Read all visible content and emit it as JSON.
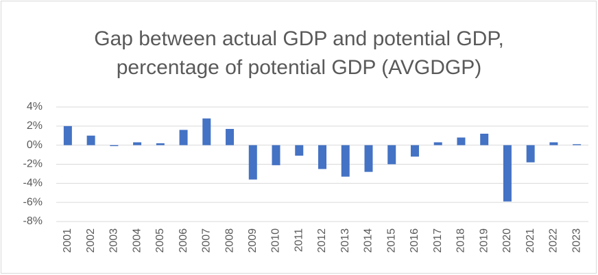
{
  "chart_data": {
    "type": "bar",
    "title": "Gap between actual GDP and potential GDP, percentage of potential GDP (AVGDGP)",
    "categories": [
      "2001",
      "2002",
      "2003",
      "2004",
      "2005",
      "2006",
      "2007",
      "2008",
      "2009",
      "2010",
      "2011",
      "2012",
      "2013",
      "2014",
      "2015",
      "2016",
      "2017",
      "2018",
      "2019",
      "2020",
      "2021",
      "2022",
      "2023"
    ],
    "values": [
      2.0,
      1.0,
      -0.1,
      0.3,
      0.2,
      1.6,
      2.8,
      1.7,
      -3.6,
      -2.1,
      -1.1,
      -2.5,
      -3.3,
      -2.8,
      -2.0,
      -1.2,
      0.3,
      0.8,
      1.2,
      -5.9,
      -1.8,
      0.3,
      0.1
    ],
    "color": "#4472c4",
    "ylim": [
      -8,
      4
    ],
    "yticks": [
      {
        "value": -8,
        "label": "-8%"
      },
      {
        "value": -6,
        "label": "-6%"
      },
      {
        "value": -4,
        "label": "-4%"
      },
      {
        "value": -2,
        "label": "-2%"
      },
      {
        "value": 0,
        "label": "0%"
      },
      {
        "value": 2,
        "label": "2%"
      },
      {
        "value": 4,
        "label": "4%"
      }
    ],
    "grid": true
  }
}
